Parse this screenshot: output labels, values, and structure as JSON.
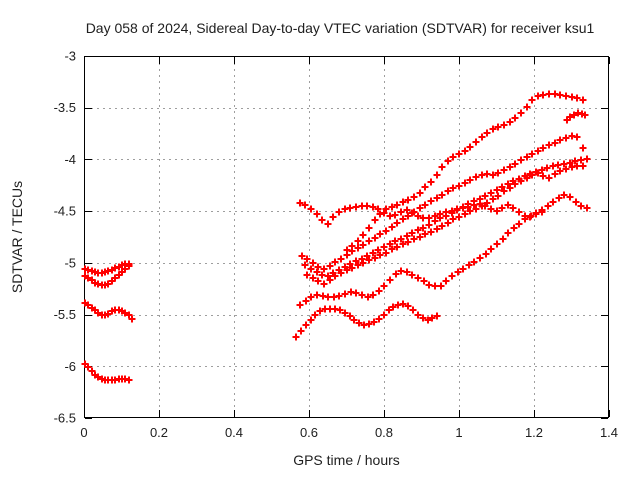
{
  "chart_data": {
    "type": "scatter",
    "title": "Day 058 of 2024, Sidereal Day-to-day VTEC variation (SDTVAR) for receiver ksu1",
    "xlabel": "GPS time / hours",
    "ylabel": "SDTVAR / TECUs",
    "xlim": [
      0,
      1.4
    ],
    "ylim": [
      -6.5,
      -3
    ],
    "x_ticks": [
      0,
      0.2,
      0.4,
      0.6,
      0.8,
      1,
      1.2,
      1.4
    ],
    "y_ticks": [
      -3,
      -3.5,
      -4,
      -4.5,
      -5,
      -5.5,
      -6,
      -6.5
    ],
    "grid": true,
    "legend": "none",
    "marker": "plus",
    "marker_color": "#ff0000",
    "axis_color": "#000000",
    "grid_color": "#9e9e9e",
    "series": [
      {
        "name": "trace-1",
        "x0": 0.002,
        "dx": 0.009,
        "y": [
          -5.06,
          -5.07,
          -5.08,
          -5.09,
          -5.1,
          -5.1,
          -5.09,
          -5.08,
          -5.07,
          -5.05,
          -5.04,
          -5.02,
          -5.01,
          -5.01
        ]
      },
      {
        "name": "trace-2",
        "x0": 0.002,
        "dx": 0.009,
        "y": [
          -5.13,
          -5.15,
          -5.17,
          -5.19,
          -5.2,
          -5.21,
          -5.21,
          -5.2,
          -5.18,
          -5.15,
          -5.12,
          -5.09,
          -5.06,
          -5.03
        ]
      },
      {
        "name": "trace-3",
        "x0": 0.002,
        "dx": 0.009,
        "y": [
          -5.39,
          -5.41,
          -5.44,
          -5.46,
          -5.48,
          -5.5,
          -5.5,
          -5.49,
          -5.47,
          -5.46,
          -5.46,
          -5.47,
          -5.48,
          -5.5,
          -5.54
        ]
      },
      {
        "name": "trace-4",
        "x0": 0.002,
        "dx": 0.009,
        "y": [
          -5.98,
          -6.01,
          -6.05,
          -6.08,
          -6.1,
          -6.12,
          -6.13,
          -6.13,
          -6.13,
          -6.13,
          -6.12,
          -6.12,
          -6.12,
          -6.13
        ]
      },
      {
        "name": "trace-5",
        "x0": 0.575,
        "dx": 0.015,
        "y": [
          -4.42,
          -4.44,
          -4.48,
          -4.53,
          -4.59,
          -4.62,
          -4.56,
          -4.51,
          -4.48,
          -4.47,
          -4.46,
          -4.45,
          -4.45,
          -4.46,
          -4.48,
          -4.52,
          -4.55,
          -4.54,
          -4.51,
          -4.49,
          -4.52,
          -4.55,
          -4.57,
          -4.57,
          -4.55,
          -4.53,
          -4.51,
          -4.5,
          -4.48,
          -4.47,
          -4.46,
          -4.44,
          -4.43,
          -4.45,
          -4.48,
          -4.5,
          -4.47,
          -4.44,
          -4.47,
          -4.51,
          -4.55,
          -4.56,
          -4.53,
          -4.51
        ]
      },
      {
        "name": "trace-6",
        "x0": 0.58,
        "dx": 0.015,
        "y": [
          -4.93,
          -4.96,
          -5.0,
          -5.04,
          -5.06,
          -5.03,
          -4.99,
          -4.96,
          -4.92,
          -4.89,
          -4.86,
          -4.83,
          -4.79,
          -4.76,
          -4.72,
          -4.69,
          -4.65,
          -4.61,
          -4.58,
          -4.55,
          -4.51,
          -4.47,
          -4.44,
          -4.4,
          -4.37,
          -4.34,
          -4.31,
          -4.28,
          -4.26,
          -4.23,
          -4.2,
          -4.17,
          -4.15,
          -4.14,
          -4.15,
          -4.13,
          -4.1,
          -4.07,
          -4.04,
          -4.01,
          -3.98,
          -3.95,
          -3.92,
          -3.89,
          -3.86,
          -3.84,
          -3.81,
          -3.79,
          -3.77,
          -3.78,
          -3.89
        ]
      },
      {
        "name": "trace-7",
        "x0": 0.59,
        "dx": 0.015,
        "y": [
          -5.02,
          -5.06,
          -5.09,
          -5.12,
          -5.13,
          -5.1,
          -5.07,
          -5.04,
          -5.01,
          -4.98,
          -4.96,
          -4.93,
          -4.9,
          -4.88,
          -4.85,
          -4.82,
          -4.79,
          -4.77,
          -4.74,
          -4.71,
          -4.68,
          -4.66,
          -4.63,
          -4.6,
          -4.57,
          -4.55,
          -4.52,
          -4.49,
          -4.46,
          -4.43,
          -4.4,
          -4.38,
          -4.35,
          -4.32,
          -4.3,
          -4.27,
          -4.24,
          -4.21,
          -4.19,
          -4.16,
          -4.14,
          -4.12,
          -4.1,
          -4.08,
          -4.06,
          -4.05,
          -4.04,
          -4.03,
          -4.02,
          -4.01,
          -4.0
        ]
      },
      {
        "name": "trace-8",
        "x0": 0.595,
        "dx": 0.015,
        "y": [
          -5.12,
          -5.15,
          -5.18,
          -5.2,
          -5.17,
          -5.13,
          -5.1,
          -5.07,
          -5.05,
          -5.02,
          -5.0,
          -4.97,
          -4.95,
          -4.92,
          -4.9,
          -4.87,
          -4.85,
          -4.82,
          -4.8,
          -4.77,
          -4.75,
          -4.72,
          -4.7,
          -4.67,
          -4.64,
          -4.61,
          -4.58,
          -4.56,
          -4.53,
          -4.5,
          -4.48,
          -4.45,
          -4.42,
          -4.38,
          -4.35,
          -4.31,
          -4.28,
          -4.24,
          -4.21,
          -4.18,
          -4.15,
          -4.13,
          -4.16,
          -4.18,
          -4.14,
          -4.11,
          -4.09,
          -4.07,
          -4.06,
          -4.06
        ]
      },
      {
        "name": "trace-9",
        "x0": 0.7,
        "dx": 0.015,
        "y": [
          -4.88,
          -4.84,
          -4.79,
          -4.73,
          -4.66,
          -4.59,
          -4.53,
          -4.48,
          -4.46,
          -4.44,
          -4.41,
          -4.39,
          -4.36,
          -4.32,
          -4.27,
          -4.22,
          -4.15,
          -4.07,
          -4.02,
          -3.98,
          -3.95,
          -3.92,
          -3.88,
          -3.83,
          -3.78,
          -3.74,
          -3.71,
          -3.69,
          -3.67,
          -3.64,
          -3.6,
          -3.55,
          -3.49,
          -3.43,
          -3.39,
          -3.38,
          -3.37,
          -3.37,
          -3.38,
          -3.39,
          -3.4,
          -3.41,
          -3.43
        ]
      },
      {
        "name": "trace-10",
        "x0": 1.287,
        "dx": 0.01,
        "y": [
          -3.62,
          -3.59,
          -3.57,
          -3.55,
          -3.56,
          -3.57
        ]
      },
      {
        "name": "trace-11",
        "x0": 0.576,
        "dx": 0.015,
        "y": [
          -5.41,
          -5.37,
          -5.33,
          -5.31,
          -5.32,
          -5.33,
          -5.33,
          -5.32,
          -5.3,
          -5.28,
          -5.29,
          -5.31,
          -5.33,
          -5.31,
          -5.27,
          -5.22,
          -5.17,
          -5.11,
          -5.08,
          -5.09,
          -5.12,
          -5.15,
          -5.18,
          -5.21,
          -5.22,
          -5.22,
          -5.18,
          -5.13,
          -5.09,
          -5.06,
          -5.02,
          -4.99,
          -4.95,
          -4.91,
          -4.87,
          -4.82,
          -4.77,
          -4.71,
          -4.66,
          -4.62,
          -4.58,
          -4.55,
          -4.52,
          -4.49,
          -4.45,
          -4.41,
          -4.37,
          -4.34,
          -4.36,
          -4.41,
          -4.45,
          -4.47
        ]
      },
      {
        "name": "trace-12",
        "x0": 0.565,
        "dx": 0.013,
        "y": [
          -5.72,
          -5.66,
          -5.6,
          -5.55,
          -5.5,
          -5.47,
          -5.45,
          -5.45,
          -5.45,
          -5.46,
          -5.48,
          -5.51,
          -5.55,
          -5.58,
          -5.6,
          -5.59,
          -5.57,
          -5.54,
          -5.5,
          -5.46,
          -5.43,
          -5.41,
          -5.4,
          -5.42,
          -5.46,
          -5.5,
          -5.53,
          -5.55,
          -5.53,
          -5.51
        ]
      }
    ]
  }
}
